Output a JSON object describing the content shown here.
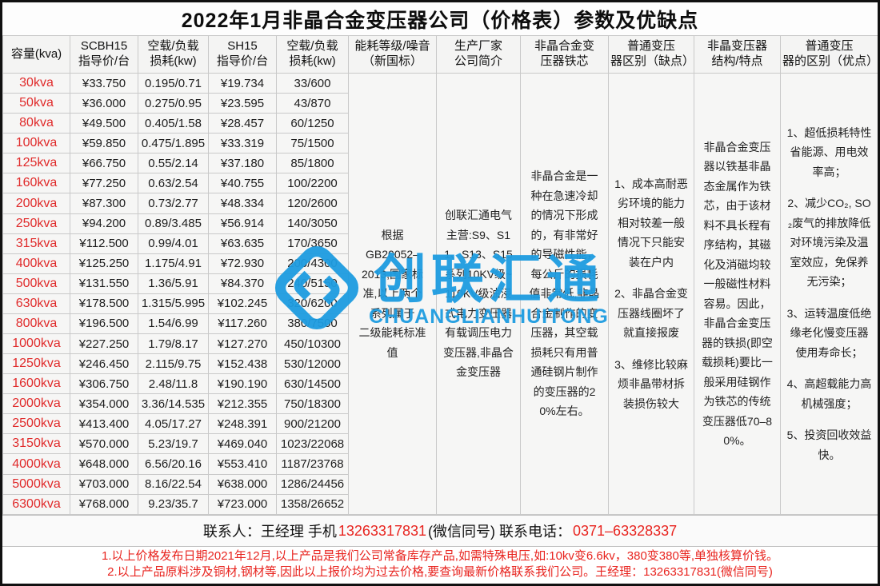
{
  "title": "2022年1月非晶合金变压器公司（价格表）参数及优缺点",
  "colors": {
    "capacity_red": "#e02a2a",
    "note_red": "#e8241f",
    "watermark_blue": "#1e9ce0"
  },
  "table": {
    "headers": [
      "容量(kva)",
      "SCBH15\n指导价/台",
      "空载/负载\n损耗(kw)",
      "SH15\n指导价/台",
      "空载/负载\n损耗(kw)",
      "能耗等级/噪音\n（新国标）",
      "生产厂家\n公司简介",
      "非晶合金变\n压器铁芯",
      "普通变压\n器区别（缺点）",
      "非晶变压器\n结构/特点",
      "普通变压\n器的区别（优点）"
    ],
    "rows": [
      [
        "30kva",
        "¥33.750",
        "0.195/0.71",
        "¥19.734",
        "33/600"
      ],
      [
        "50kva",
        "¥36.000",
        "0.275/0.95",
        "¥23.595",
        "43/870"
      ],
      [
        "80kva",
        "¥49.500",
        "0.405/1.58",
        "¥28.457",
        "60/1250"
      ],
      [
        "100kva",
        "¥59.850",
        "0.475/1.895",
        "¥33.319",
        "75/1500"
      ],
      [
        "125kva",
        "¥66.750",
        "0.55/2.14",
        "¥37.180",
        "85/1800"
      ],
      [
        "160kva",
        "¥77.250",
        "0.63/2.54",
        "¥40.755",
        "100/2200"
      ],
      [
        "200kva",
        "¥87.300",
        "0.73/2.77",
        "¥48.334",
        "120/2600"
      ],
      [
        "250kva",
        "¥94.200",
        "0.89/3.485",
        "¥56.914",
        "140/3050"
      ],
      [
        "315kva",
        "¥112.500",
        "0.99/4.01",
        "¥63.635",
        "170/3650"
      ],
      [
        "400kva",
        "¥125.250",
        "1.175/4.91",
        "¥72.930",
        "200/4300"
      ],
      [
        "500kva",
        "¥131.550",
        "1.36/5.91",
        "¥84.370",
        "240/5150"
      ],
      [
        "630kva",
        "¥178.500",
        "1.315/5.995",
        "¥102.245",
        "320/6200"
      ],
      [
        "800kva",
        "¥196.500",
        "1.54/6.99",
        "¥117.260",
        "380/7500"
      ],
      [
        "1000kva",
        "¥227.250",
        "1.79/8.17",
        "¥127.270",
        "450/10300"
      ],
      [
        "1250kva",
        "¥246.450",
        "2.115/9.75",
        "¥152.438",
        "530/12000"
      ],
      [
        "1600kva",
        "¥306.750",
        "2.48/11.8",
        "¥190.190",
        "630/14500"
      ],
      [
        "2000kva",
        "¥354.000",
        "3.36/14.535",
        "¥212.355",
        "750/18300"
      ],
      [
        "2500kva",
        "¥413.400",
        "4.05/17.27",
        "¥248.391",
        "900/21200"
      ],
      [
        "3150kva",
        "¥570.000",
        "5.23/19.7",
        "¥469.040",
        "1023/22068"
      ],
      [
        "4000kva",
        "¥648.000",
        "6.56/20.16",
        "¥553.410",
        "1187/23768"
      ],
      [
        "5000kva",
        "¥703.000",
        "8.16/22.54",
        "¥638.000",
        "1286/24456"
      ],
      [
        "6300kva",
        "¥768.000",
        "9.23/35.7",
        "¥723.000",
        "1358/26652"
      ]
    ],
    "merged": {
      "energy_standard": "根据\nGB20052–\n2013,国家标\n准,以上两个\n系列属于\n二级能耗标准值",
      "manufacturer": "创联汇通电气主营:S9、S11、S13、S15系列10KV级~110KV级油浸式电力变压器有载调压电力变压器,非晶合金变压器",
      "core": "非晶合金是一种在急速冷却的情况下形成的，有非常好的导磁性能，每公斤的损耗值非常低,非晶合金制作的变压器，其空载损耗只有用普通硅钢片制作的变压器的20%左右。",
      "disadvantages": [
        "1、成本高耐恶劣环境的能力相对较差一般情况下只能安装在户内",
        "2、非晶合金变压器线圈坏了就直接报废",
        "3、维修比较麻烦非晶带材拆装损伤较大"
      ],
      "structure": "非晶合金变压器以铁基非晶态金属作为铁芯，由于该材料不具长程有序结构，其磁化及消磁均较一般磁性材料容易。因此，非晶合金变压器的铁损(即空载损耗)要比一般采用硅钢作为铁芯的传统变压器低70–80%。",
      "advantages": [
        "1、超低损耗特性省能源、用电效率高；",
        "2、减少CO₂, SO₂废气的排放降低对环境污染及温室效应，免保养无污染；",
        "3、运转温度低绝缘老化慢变压器使用寿命长；",
        "4、高超载能力高机械强度；",
        "5、投资回收效益快。"
      ]
    }
  },
  "watermark": {
    "cn": "创联汇通",
    "en": "CHUANGLIANHUITONG"
  },
  "footer": {
    "contact_prefix": "联系人：王经理  手机",
    "contact_mobile": "13263317831",
    "contact_mid": " (微信同号) 联系电话：",
    "contact_phone": "0371–63328337",
    "note1": "1.以上价格发布日期2021年12月,以上产品是我们公司常备库存产品,如需特殊电压,如:10kv变6.6kv，380变380等,单独核算价钱。",
    "note2": "2.以上产品原料涉及铜材,钢材等,因此以上报价均为过去价格,要查询最新价格联系我们公司。王经理：13263317831(微信同号)"
  }
}
